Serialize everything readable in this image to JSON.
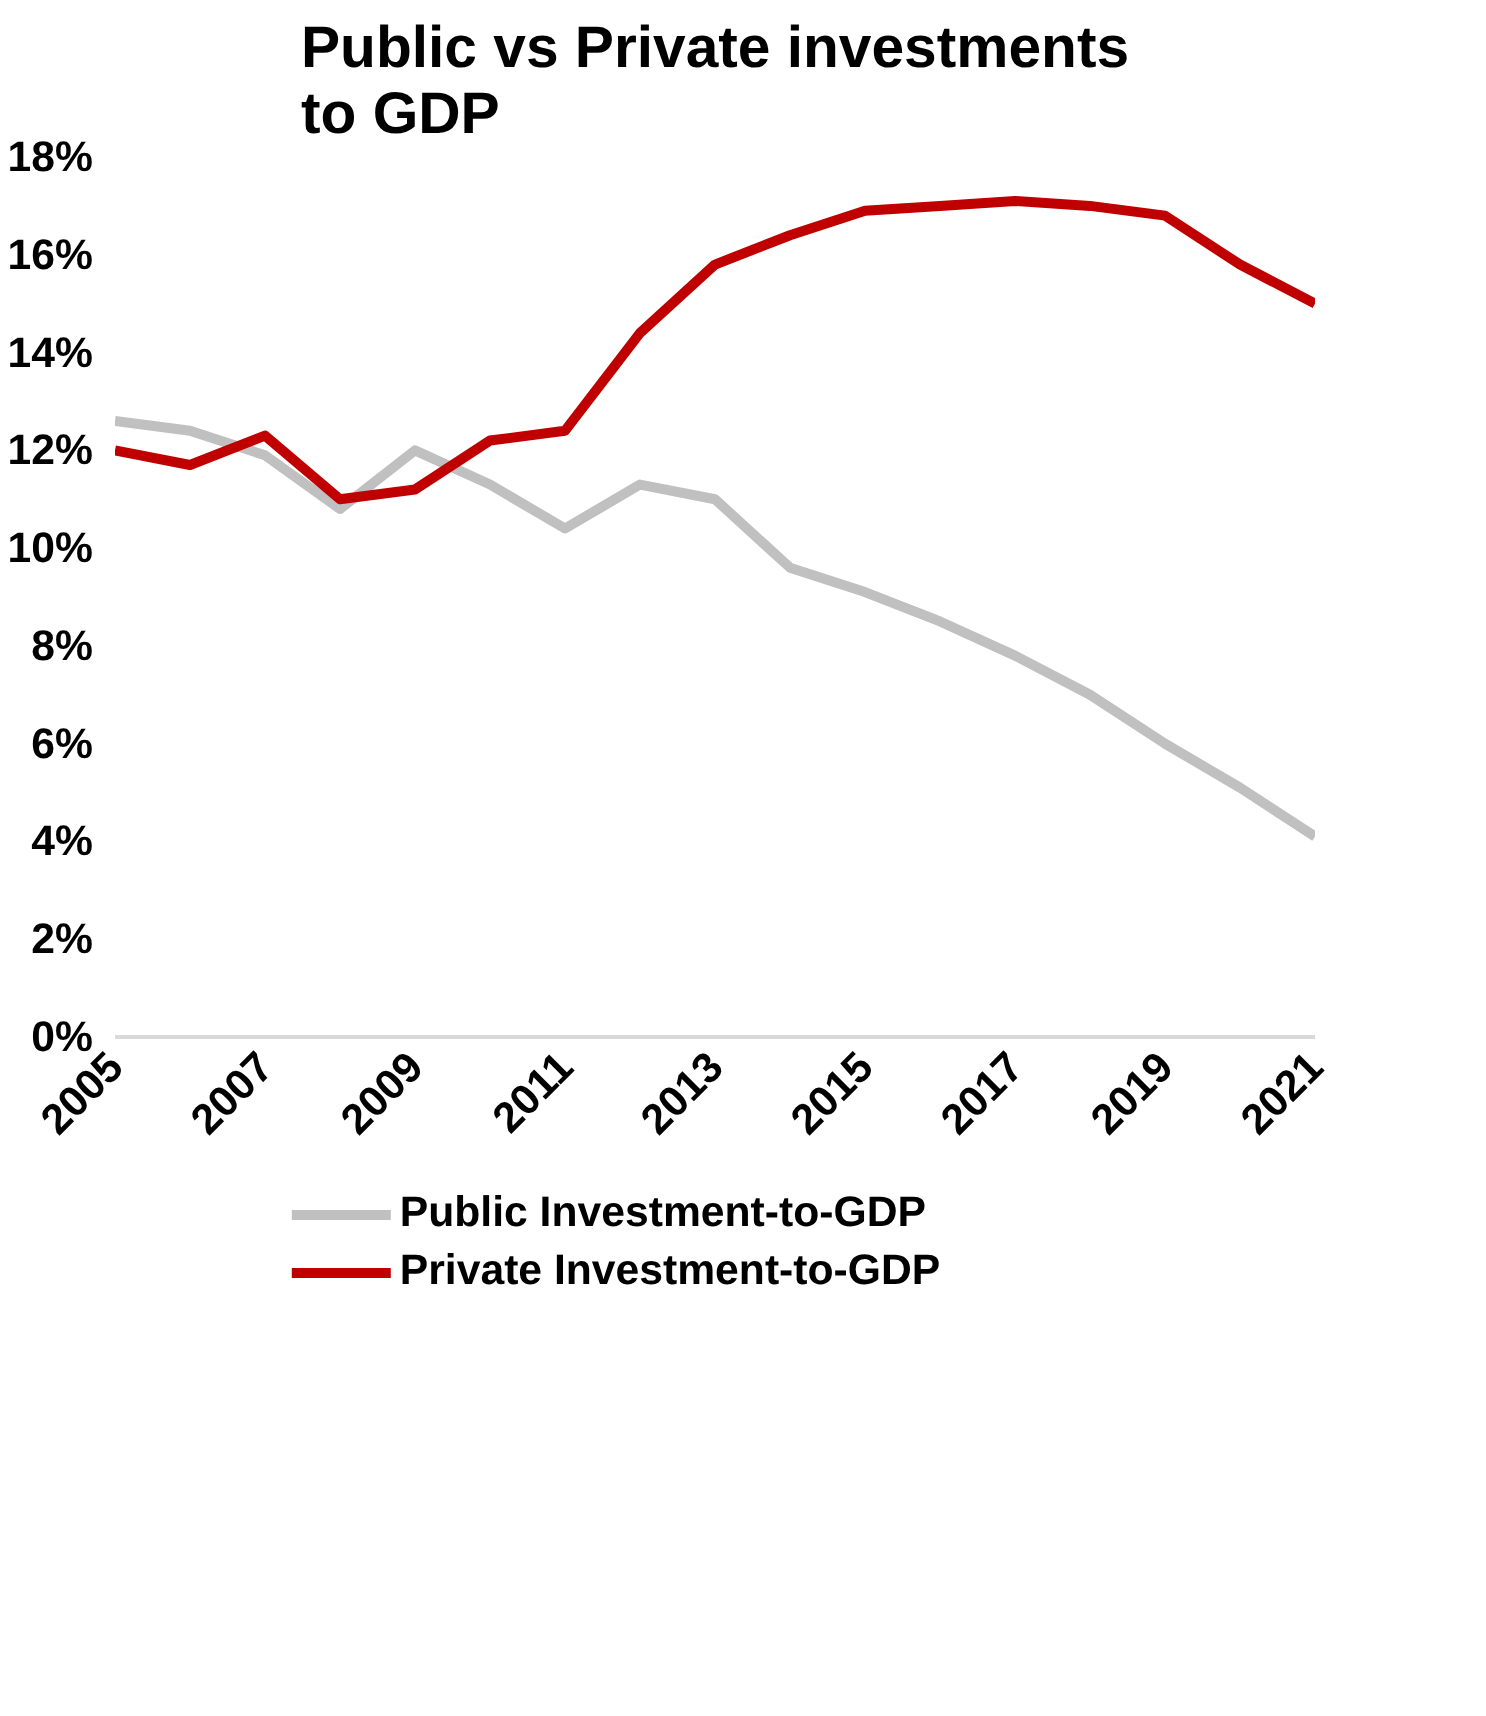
{
  "chart_data": {
    "type": "line",
    "title": "Public vs Private investments to GDP",
    "x": [
      2005,
      2006,
      2007,
      2008,
      2009,
      2010,
      2011,
      2012,
      2013,
      2014,
      2015,
      2016,
      2017,
      2018,
      2019,
      2020,
      2021
    ],
    "series": [
      {
        "name": "Public Investment-to-GDP",
        "color": "#c0c0c0",
        "values": [
          12.6,
          12.4,
          11.9,
          10.8,
          12.0,
          11.3,
          10.4,
          11.3,
          11.0,
          9.6,
          9.1,
          8.5,
          7.8,
          7.0,
          6.0,
          5.1,
          4.1
        ]
      },
      {
        "name": "Private Investment-to-GDP",
        "color": "#c00000",
        "values": [
          12.0,
          11.7,
          12.3,
          11.0,
          11.2,
          12.2,
          12.4,
          14.4,
          15.8,
          16.4,
          16.9,
          17.0,
          17.1,
          17.0,
          16.8,
          15.8,
          15.0
        ]
      }
    ],
    "xlim": [
      2005,
      2021
    ],
    "xticks": [
      2005,
      2007,
      2009,
      2011,
      2013,
      2015,
      2017,
      2019,
      2021
    ],
    "ylim": [
      0,
      18
    ],
    "yticks": [
      {
        "value": 0,
        "label": "0%"
      },
      {
        "value": 2,
        "label": "2%"
      },
      {
        "value": 4,
        "label": "4%"
      },
      {
        "value": 6,
        "label": "6%"
      },
      {
        "value": 8,
        "label": "8%"
      },
      {
        "value": 10,
        "label": "10%"
      },
      {
        "value": 12,
        "label": "12%"
      },
      {
        "value": 14,
        "label": "14%"
      },
      {
        "value": 16,
        "label": "16%"
      },
      {
        "value": 18,
        "label": "18%"
      }
    ],
    "grid": false,
    "legend": "bottom",
    "marker": "none",
    "line_style": "solid"
  }
}
